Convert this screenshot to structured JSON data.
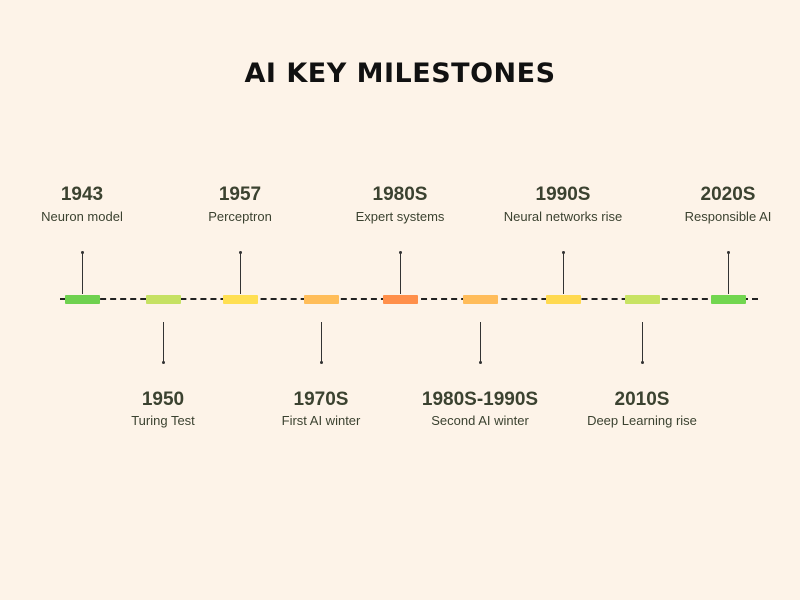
{
  "title": "AI KEY MILESTONES",
  "milestones": [
    {
      "year": "1943",
      "label": "Neuron model",
      "position": "above",
      "color": "#6fd14f"
    },
    {
      "year": "1950",
      "label": "Turing Test",
      "position": "below",
      "color": "#c6e163"
    },
    {
      "year": "1957",
      "label": "Perceptron",
      "position": "above",
      "color": "#ffdf52"
    },
    {
      "year": "1970S",
      "label": "First AI winter",
      "position": "below",
      "color": "#ffbd59"
    },
    {
      "year": "1980S",
      "label": "Expert systems",
      "position": "above",
      "color": "#ff8f4a"
    },
    {
      "year": "1980S-1990S",
      "label": "Second AI winter",
      "position": "below",
      "color": "#ffbc5a"
    },
    {
      "year": "1990S",
      "label": "Neural networks rise",
      "position": "above",
      "color": "#ffd950"
    },
    {
      "year": "2010S",
      "label": "Deep Learning rise",
      "position": "below",
      "color": "#c8e363"
    },
    {
      "year": "2020S",
      "label": "Responsible AI",
      "position": "above",
      "color": "#72d64f"
    }
  ]
}
